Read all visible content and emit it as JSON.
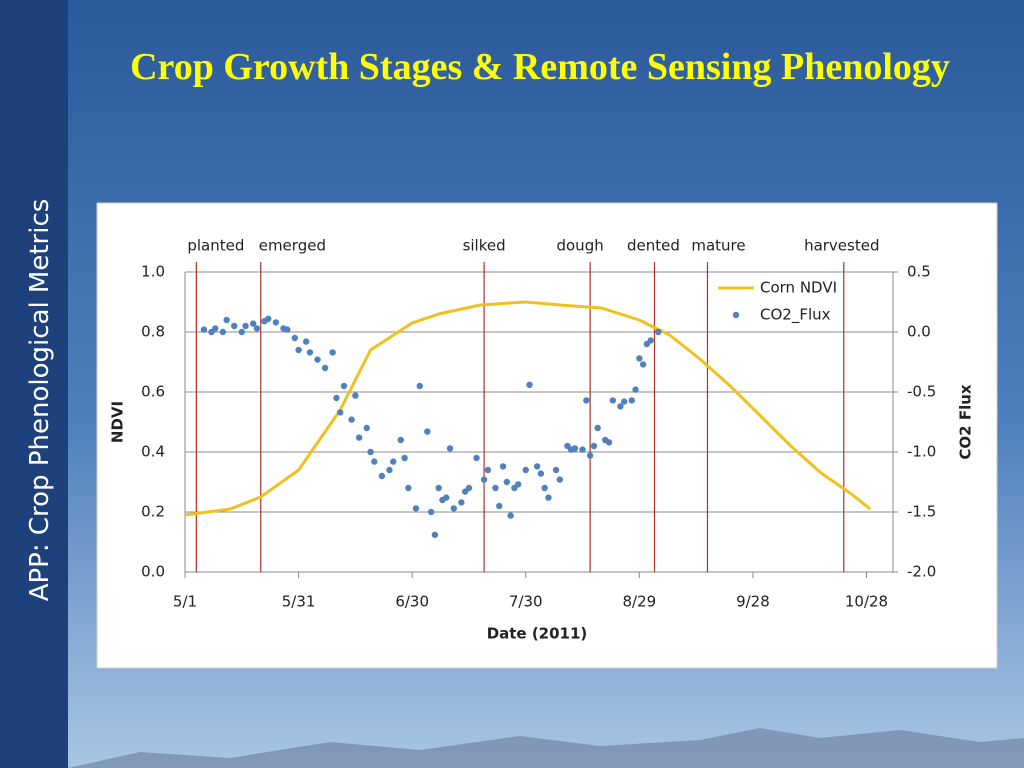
{
  "slide": {
    "title": "Crop Growth Stages & Remote Sensing Phenology",
    "side_label": "APP: Crop Phenological Metrics"
  },
  "chart_data": {
    "type": "line",
    "xlabel": "Date (2011)",
    "ylabel": "NDVI",
    "y2label": "CO2 Flux",
    "xlim": [
      121,
      308
    ],
    "xticks": [
      {
        "value": 121,
        "label": "5/1"
      },
      {
        "value": 151,
        "label": "5/31"
      },
      {
        "value": 181,
        "label": "6/30"
      },
      {
        "value": 211,
        "label": "7/30"
      },
      {
        "value": 241,
        "label": "8/29"
      },
      {
        "value": 271,
        "label": "9/28"
      },
      {
        "value": 301,
        "label": "10/28"
      }
    ],
    "ylim": [
      0,
      1
    ],
    "yticks": [
      {
        "value": 0,
        "label": "0.0"
      },
      0.2,
      0.4,
      0.6,
      0.8,
      {
        "value": 1,
        "label": "1.0"
      }
    ],
    "y2lim": [
      -2,
      0.5
    ],
    "y2ticks": [
      {
        "value": -2,
        "label": "-2.0"
      },
      -1.5,
      {
        "value": -1,
        "label": "-1.0"
      },
      -0.5,
      {
        "value": 0,
        "label": "0.0"
      },
      0.5
    ],
    "grid": true,
    "legend": "upper right",
    "stages": {
      "labels": [
        "planted",
        "emerged",
        "silked",
        "dough",
        "dented",
        "mature",
        "harvested"
      ],
      "x": [
        124,
        141,
        200,
        228,
        245,
        259,
        295
      ],
      "color": "#b0302a"
    },
    "series": [
      {
        "name": "Corn NDVI",
        "type": "line",
        "axis": "y",
        "color": "#f2c01e",
        "x": [
          121,
          133,
          141,
          151,
          162,
          170,
          181,
          188,
          199,
          211,
          220,
          231,
          241,
          249,
          257,
          265,
          273,
          281,
          289,
          297,
          302
        ],
        "values": [
          0.19,
          0.21,
          0.25,
          0.34,
          0.54,
          0.74,
          0.83,
          0.86,
          0.89,
          0.9,
          0.89,
          0.88,
          0.84,
          0.79,
          0.71,
          0.62,
          0.52,
          0.42,
          0.33,
          0.26,
          0.21
        ]
      },
      {
        "name": "CO2_Flux",
        "type": "scatter",
        "axis": "y2",
        "color": "#4f81bd",
        "x": [
          126,
          128,
          129,
          131,
          132,
          134,
          136,
          137,
          139,
          140,
          142,
          143,
          145,
          147,
          148,
          150,
          151,
          153,
          154,
          156,
          158,
          160,
          161,
          162,
          163,
          165,
          166,
          167,
          169,
          170,
          171,
          173,
          175,
          176,
          178,
          179,
          180,
          182,
          183,
          185,
          186,
          187,
          188,
          189,
          190,
          191,
          192,
          194,
          195,
          196,
          198,
          200,
          201,
          203,
          204,
          205,
          206,
          207,
          208,
          209,
          211,
          212,
          214,
          215,
          216,
          217,
          219,
          220,
          222,
          223,
          224,
          226,
          227,
          228,
          229,
          230,
          232,
          233,
          234,
          236,
          237,
          239,
          240,
          241,
          242,
          243,
          244,
          246
        ],
        "values": [
          0.02,
          0,
          0.03,
          0,
          0.1,
          0.05,
          0,
          0.05,
          0.07,
          0.03,
          0.09,
          0.11,
          0.08,
          0.03,
          0.02,
          -0.05,
          -0.15,
          -0.08,
          -0.17,
          -0.23,
          -0.3,
          -0.17,
          -0.55,
          -0.67,
          -0.45,
          -0.73,
          -0.53,
          -0.88,
          -0.8,
          -1,
          -1.08,
          -1.2,
          -1.15,
          -1.08,
          -0.9,
          -1.05,
          -1.3,
          -1.47,
          -0.45,
          -0.83,
          -1.5,
          -1.69,
          -1.3,
          -1.4,
          -1.38,
          -0.97,
          -1.47,
          -1.42,
          -1.33,
          -1.3,
          -1.05,
          -1.23,
          -1.15,
          -1.3,
          -1.45,
          -1.12,
          -1.25,
          -1.53,
          -1.3,
          -1.27,
          -1.15,
          -0.44,
          -1.12,
          -1.18,
          -1.3,
          -1.38,
          -1.15,
          -1.23,
          -0.95,
          -0.98,
          -0.97,
          -0.98,
          -0.57,
          -1.03,
          -0.95,
          -0.8,
          -0.9,
          -0.92,
          -0.57,
          -0.62,
          -0.58,
          -0.57,
          -0.48,
          -0.22,
          -0.27,
          -0.1,
          -0.07,
          0
        ]
      }
    ]
  }
}
